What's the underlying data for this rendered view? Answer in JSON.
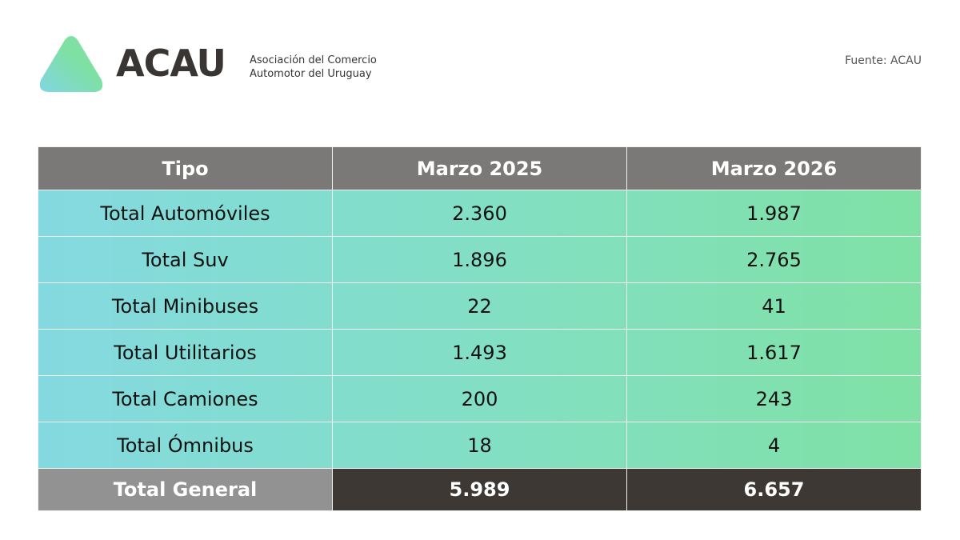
{
  "logo": {
    "wordmark": "ACAU",
    "subtitle_line1": "Asociación del Comercio",
    "subtitle_line2": "Automotor del Uruguay",
    "colors": [
      "#7fd8e0",
      "#7ee0a0"
    ]
  },
  "source": "Fuente: ACAU",
  "table": {
    "headers": [
      "Tipo",
      "Marzo 2025",
      "Marzo 2026"
    ],
    "rows": [
      [
        "Total Automóviles",
        "2.360",
        "1.987"
      ],
      [
        "Total Suv",
        "1.896",
        "2.765"
      ],
      [
        "Total Minibuses",
        "22",
        "41"
      ],
      [
        "Total Utilitarios",
        "1.493",
        "1.617"
      ],
      [
        "Total Camiones",
        "200",
        "243"
      ],
      [
        "Total Ómnibus",
        "18",
        "4"
      ]
    ],
    "total": [
      "Total General",
      "5.989",
      "6.657"
    ]
  }
}
